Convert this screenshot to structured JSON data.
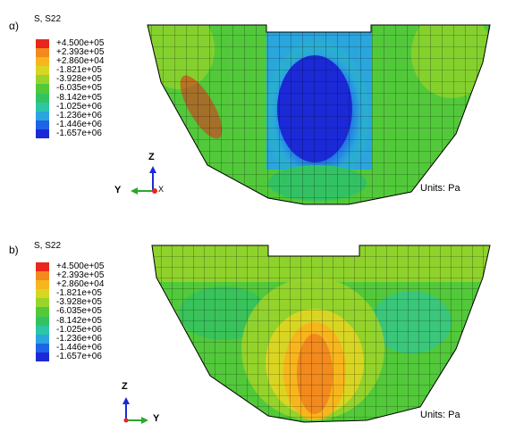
{
  "panels": [
    {
      "label": "α)",
      "legend_title": "S, S22",
      "units": "Units: Pa",
      "triad": {
        "vertical": "Z",
        "horizontal": "Y",
        "depth": "X"
      }
    },
    {
      "label": "b)",
      "legend_title": "S, S22",
      "units": "Units: Pa",
      "triad": {
        "vertical": "Z",
        "horizontal": "Y"
      }
    }
  ],
  "legend": {
    "labels": [
      "+4.500e+05",
      "+2.393e+05",
      "+2.860e+04",
      "-1.821e+05",
      "-3.928e+05",
      "-6.035e+05",
      "-8.142e+05",
      "-1.025e+06",
      "-1.236e+06",
      "-1.446e+06",
      "-1.657e+06"
    ],
    "colors": [
      "#e8261c",
      "#f28a1e",
      "#f7b51e",
      "#d9d523",
      "#9ad42a",
      "#52c93a",
      "#33c263",
      "#2cc6a6",
      "#2aa6dd",
      "#1f63e8",
      "#1b2ad6"
    ]
  }
}
